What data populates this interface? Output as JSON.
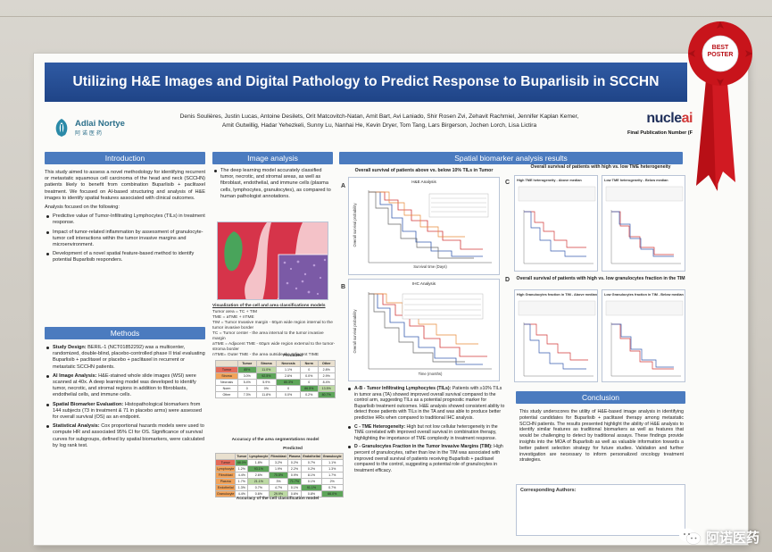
{
  "title": "Utilizing H&E Images and Digital Pathology to Predict Response to Buparlisib in SCCHN",
  "logos": {
    "left_name": "Adlai Nortye",
    "left_cn": "阿诺医药",
    "right_name_pre": "nucle",
    "right_name_ai": "ai",
    "right_pub": "Final Publication Number (F"
  },
  "authors_line1": "Denis Soulières, Justin Lucas, Antoine Desilets, Orit Matcovitch-Natan, Amit Bart, Avi Laniado, Shir Rosen Zvi, Zehavit Rachmiel, Jennifer Kaplan Kemer,",
  "authors_line2": "Amit Gutwillig, Hadar Yehezkeli, Sunny Lu, Nanhai He, Kevin Dryer, Tom Tang, Lars Birgerson, Jochen Lorch, Lisa Lictira",
  "sections": {
    "introduction": "Introduction",
    "methods": "Methods",
    "image_analysis": "Image analysis",
    "spatial": "Spatial biomarker analysis results",
    "conclusion": "Conclusion"
  },
  "intro_text": "This study aimed to assess a novel methodology for identifying recurrent or metastatic squamous cell carcinoma of the head and neck (SCCHN) patients likely to benefit from combination Buparlisib + paclitaxel treatment. We focused on AI-based structuring and analysis of H&E images to identify spatial features associated with clinical outcomes.",
  "intro_lead": "Analysis focused on the following:",
  "intro_bullets": [
    "Predictive value of Tumor-Infiltrating Lymphocytes (TILs) in treatment response.",
    "Impact of tumor-related inflammation by assessment of granulocyte-tumor cell interactions within the tumor invasive margins and microenvironment.",
    "Development of a novel spatial feature-based method to identify potential Buparlisib responders."
  ],
  "methods": [
    {
      "head": "Study Design:",
      "body": "BERIL-1 (NCT01852292) was a multicenter, randomized, double-blind, placebo-controlled phase II trial evaluating Buparlisib + paclitaxel or placebo + paclitaxel in recurrent or metastatic SCCHN patients."
    },
    {
      "head": "AI Image Analysis:",
      "body": "H&E-stained whole slide images (WSI) were scanned at 40x. A deep learning model was developed to identify tumor, necrotic, and stromal regions in addition to fibroblasts, endothelial cells, and immune cells."
    },
    {
      "head": "Spatial Biomarker Evaluation:",
      "body": "Histopathological biomarkers from 144 subjects (73 in treatment & 71 in placebo arms) were assessed for overall survival (OS) as an endpoint."
    },
    {
      "head": "Statistical Analysis:",
      "body": "Cox proportional hazards models were used to compute HR and associated 95% CI for OS. Significance of survival curves for subgroups, defined by spatial biomarkers, were calculated by log rank test."
    }
  ],
  "image_bullet": "The deep learning model accurately classified tumor, necrotic, and stromal areas, as well as fibroblast, endothelial, and immune cells (plasma cells, lymphocytes, granulocytes), as compared to human pathologist annotations.",
  "viz_caption": "Visualization of the cell and area classifications models",
  "viz_lines": [
    "Tumor area = TC + TIM",
    "TME = aTME + nTME",
    "TIM = Tumor Invasive margin - 60µm wide region internal to the tumor invasive border",
    "TC = Tumor center - the area internal to the tumor invasive margin",
    "aTME = Adjacent TME - 60µm wide region external to the tumor-stroma border",
    "nTME= Outer TME - the area outside the adjacent TIME"
  ],
  "table1": {
    "col_head": "Predicted",
    "caption": "Accuracy of the area segmentations model",
    "headers": [
      "",
      "Tumor",
      "Stroma",
      "Necrosis",
      "Norm",
      "Other"
    ],
    "rows": [
      [
        "Tumor",
        "85%",
        "11.0%",
        "1.1%",
        "0",
        "2.8%"
      ],
      [
        "Stroma",
        "3.0%",
        "92.5%",
        "2.6%",
        "0.0%",
        "2.9%"
      ],
      [
        "Necrosis",
        "5.4%",
        "5.9%",
        "80.3%",
        "0",
        "8.4%"
      ],
      [
        "Norm",
        "0",
        "0%",
        "0",
        "86.5%",
        "13.5%"
      ],
      [
        "Other",
        "7.3%",
        "11.8%",
        "0.0%",
        "0.2%",
        "80.7%"
      ]
    ]
  },
  "table2": {
    "col_head": "Predicted",
    "caption": "Accuracy of the cell classification model",
    "headers": [
      "",
      "Tumor",
      "Lymphocyte",
      "Fibroblast",
      "Plasma",
      "Endothelial",
      "Granulocyte"
    ],
    "rows": [
      [
        "Tumor",
        "88.0%",
        "1.8%",
        "3.2%",
        "0.2%",
        "0.7%",
        "1.1%"
      ],
      [
        "Lymphocyte",
        "1.2%",
        "93.1%",
        "1.9%",
        "2.2%",
        "0.2%",
        "1.3%"
      ],
      [
        "Fibroblast",
        "4.4%",
        "2.6%",
        "70.5%",
        "0.9%",
        "8.1%",
        "1.7%"
      ],
      [
        "Plasma",
        "1.7%",
        "21.1%",
        "3%",
        "71.7%",
        "0.1%",
        "2%"
      ],
      [
        "Endothelial",
        "1.3%",
        "0.7%",
        "4.7%",
        "0.1%",
        "91.1%",
        "0.7%"
      ],
      [
        "Granulocyte",
        "4.4%",
        "0.6%",
        "29.9%",
        "0.6%",
        "0.8%",
        "66.0%"
      ]
    ]
  },
  "panels": {
    "A": {
      "letter": "A",
      "title": "Overall survival of patients above vs. below 10% TILs in Tumor",
      "sub": "H&E Analysis",
      "ylabel": "Overall survival probability",
      "xlabel": "Survival time (Days)"
    },
    "B": {
      "letter": "B",
      "sub": "IHC Analysis",
      "ylabel": "Overall survival probability",
      "xlabel": "Time (months)"
    },
    "C": {
      "letter": "C",
      "title": "Overall survival of patients with high vs. low TME heterogeneity",
      "left": "High TME heterogeneity - Above median",
      "right": "Low TME heterogeneity - Below median"
    },
    "D": {
      "letter": "D",
      "title": "Overall survival of patients with high vs. low granulocytes fraction in the TIM",
      "left": "High Granulocytes fraction in TIM - Above median",
      "right": "Low Granulocytes fraction in TIM - Below median"
    }
  },
  "results": [
    {
      "head": "A-B - Tumor Infiltrating Lymphocytes (TILs):",
      "body": "Patients with ≥10% TILs in tumor area (TA) showed improved overall survival compared to the control arm, suggesting TILs as a potential prognostic marker for Buparlisib treatment outcomes. H&E analysis showed consistent ability to detect those patients with TILs in the TA and was able to produce better predictive HRs when compared to traditional IHC analysis."
    },
    {
      "head": "C - TME Heterogeneity:",
      "body": "High but not low cellular heterogeneity in the TME correlated with improved overall survival in combination therapy, highlighting the importance of TME complexity in treatment response."
    },
    {
      "head": "D - Granulocytes Fraction in the Tumor Invasive Margins (TIM):",
      "body": "High percent of granulocytes, rather than low in the TIM was associated with improved overall survival of patients receiving Buparlisib + paclitaxel compared to the control, suggesting a potential role of granulocytes in treatment efficacy."
    }
  ],
  "conclusion_text": "This study underscores the utility of H&E-based image analysis in identifying potential candidates for Buparlisib + paclitaxel therapy among metastatic SCCHN patients. The results presented highlight the ability of H&E analysis to identify similar features as traditional biomarkers as well as features that would be challenging to detect by traditional assays. These findings provide insights into the MOA of Buparlisib as well as valuable information towards a better patient selection strategy for future studies. Validation and further investigation are necessary to inform personalized oncology treatment strategies.",
  "corresponding": "Corresponding Authors:",
  "ribbon_text": [
    "BEST",
    "POSTER"
  ],
  "watermark": "阿诺医药",
  "colors": {
    "banner": "#1f4487",
    "section": "#4b7bbf",
    "ribbon": "#c8141b",
    "red_curve": "#d23a3a",
    "blue_curve": "#3a5fb0"
  }
}
